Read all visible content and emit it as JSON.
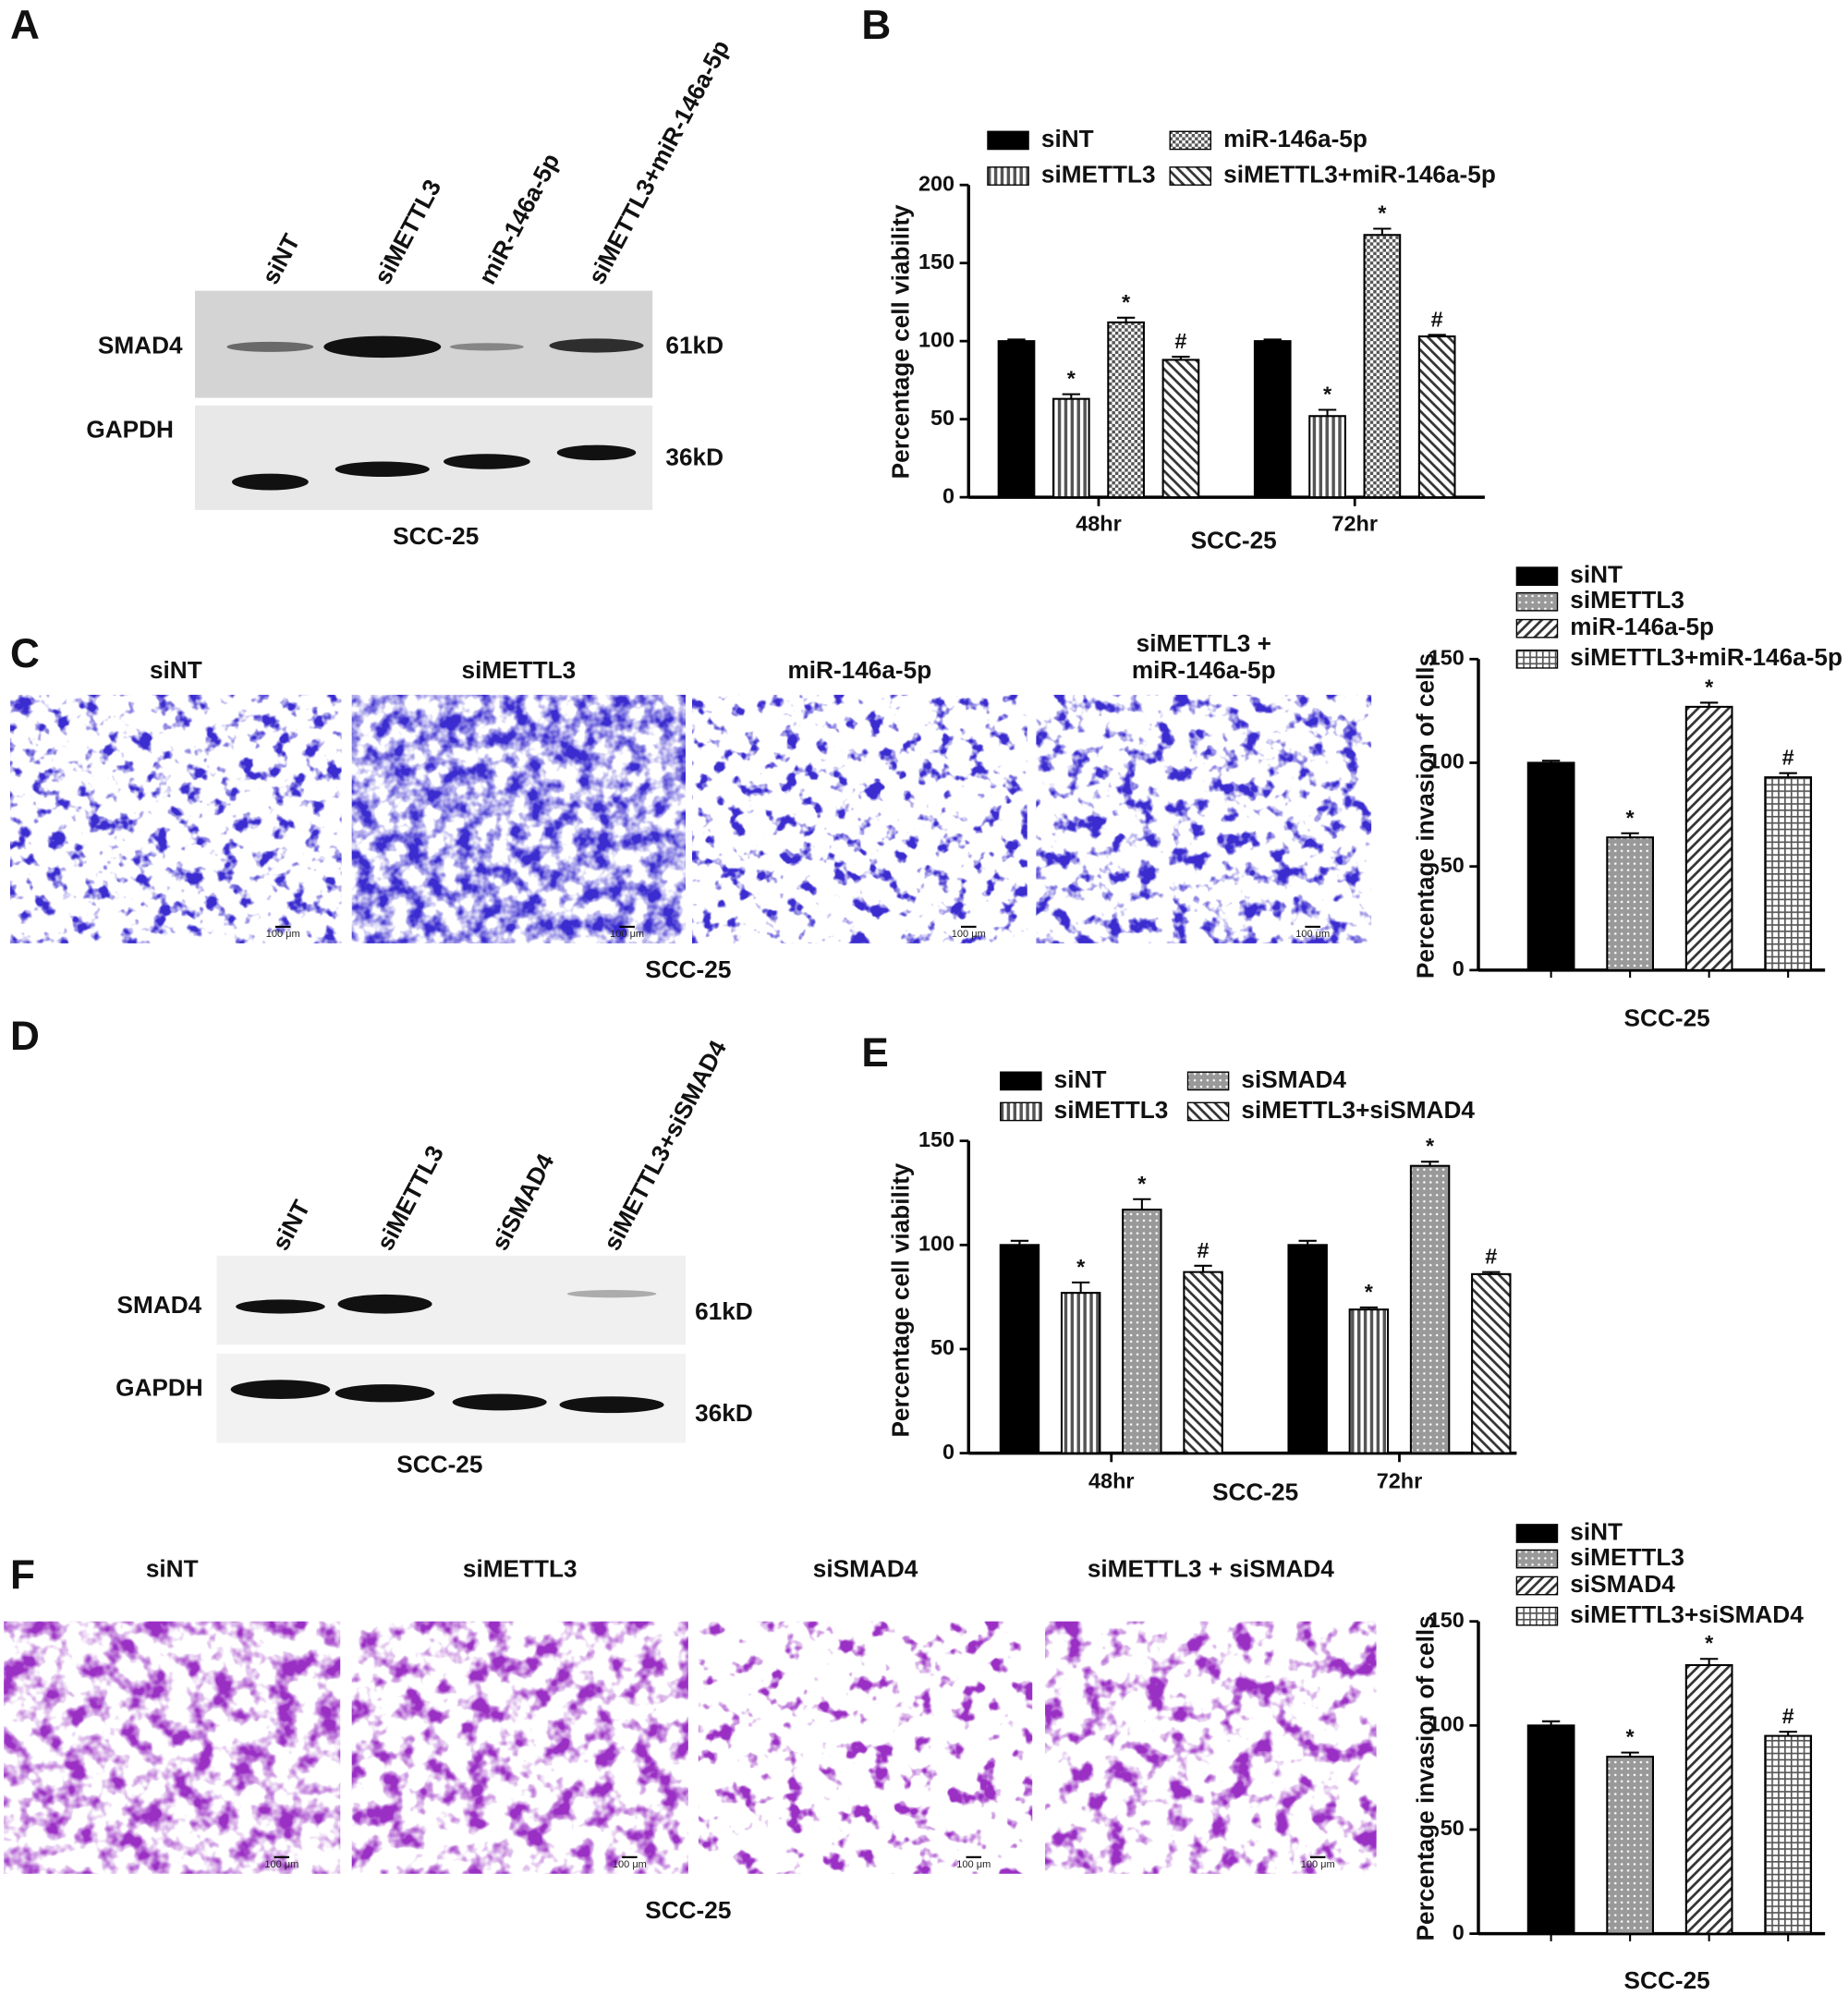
{
  "panel_labels": [
    "A",
    "B",
    "C",
    "D",
    "E",
    "F"
  ],
  "blot_a": {
    "lanes": [
      "siNT",
      "siMETTL3",
      "miR-146a-5p",
      "siMETTL3+miR-146a-5p"
    ],
    "rows": [
      {
        "label": "SMAD4",
        "size": "61kD"
      },
      {
        "label": "GAPDH",
        "size": "36kD"
      }
    ],
    "cell_line": "SCC-25"
  },
  "micrograph_c": {
    "labels": [
      [
        "siNT"
      ],
      [
        "siMETTL3"
      ],
      [
        "miR-146a-5p"
      ],
      [
        "siMETTL3 +",
        "miR-146a-5p"
      ]
    ],
    "scale_bar": "100 μm",
    "cell_line": "SCC-25"
  },
  "blot_d": {
    "lanes": [
      "siNT",
      "siMETTL3",
      "siSMAD4",
      "siMETTL3+siSMAD4"
    ],
    "rows": [
      {
        "label": "SMAD4",
        "size": "61kD"
      },
      {
        "label": "GAPDH",
        "size": "36kD"
      }
    ],
    "cell_line": "SCC-25"
  },
  "micrograph_f": {
    "labels": [
      [
        "siNT"
      ],
      [
        "siMETTL3"
      ],
      [
        "siSMAD4"
      ],
      [
        "siMETTL3 + siSMAD4"
      ]
    ],
    "scale_bar": "100 μm",
    "cell_line": "SCC-25"
  },
  "chart_data": [
    {
      "type": "bar",
      "ylabel": "Percentage cell viability",
      "xlabel": "SCC-25",
      "categories": [
        "48hr",
        "72hr"
      ],
      "ylim": [
        0,
        200
      ],
      "yticks": [
        0,
        50,
        100,
        150,
        200
      ],
      "series": [
        {
          "name": "siNT",
          "color": "#000000",
          "pattern": "solid",
          "values": [
            100,
            100
          ],
          "errors": [
            1,
            1
          ],
          "marks": [
            null,
            null
          ]
        },
        {
          "name": "siMETTL3",
          "color": "#555555",
          "pattern": "vertical",
          "values": [
            63,
            52
          ],
          "errors": [
            3,
            4
          ],
          "marks": [
            "*",
            "*"
          ]
        },
        {
          "name": "miR-146a-5p",
          "color": "#555555",
          "pattern": "checker",
          "values": [
            112,
            168
          ],
          "errors": [
            3,
            4
          ],
          "marks": [
            "*",
            "*"
          ]
        },
        {
          "name": "siMETTL3+miR-146a-5p",
          "color": "#333333",
          "pattern": "backdiag",
          "values": [
            88,
            103
          ],
          "errors": [
            2,
            1
          ],
          "marks": [
            "#",
            "#"
          ]
        }
      ]
    },
    {
      "type": "bar",
      "ylabel": "Percentage invasion of cells",
      "xlabel": "SCC-25",
      "categories": [
        null
      ],
      "ylim": [
        0,
        150
      ],
      "yticks": [
        0,
        50,
        100,
        150
      ],
      "series": [
        {
          "name": "siNT",
          "color": "#000000",
          "pattern": "solid",
          "values": [
            100
          ],
          "errors": [
            1
          ],
          "marks": [
            null
          ]
        },
        {
          "name": "siMETTL3",
          "color": "#999999",
          "pattern": "dots",
          "values": [
            64
          ],
          "errors": [
            2
          ],
          "marks": [
            "*"
          ]
        },
        {
          "name": "miR-146a-5p",
          "color": "#333333",
          "pattern": "diagonal",
          "values": [
            127
          ],
          "errors": [
            2
          ],
          "marks": [
            "*"
          ]
        },
        {
          "name": "siMETTL3+miR-146a-5p",
          "color": "#555555",
          "pattern": "grid",
          "values": [
            93
          ],
          "errors": [
            2
          ],
          "marks": [
            "#"
          ]
        }
      ]
    },
    {
      "type": "bar",
      "ylabel": "Percentage cell viability",
      "xlabel": "SCC-25",
      "categories": [
        "48hr",
        "72hr"
      ],
      "ylim": [
        0,
        150
      ],
      "yticks": [
        0,
        50,
        100,
        150
      ],
      "series": [
        {
          "name": "siNT",
          "color": "#000000",
          "pattern": "solid",
          "values": [
            100,
            100
          ],
          "errors": [
            2,
            2
          ],
          "marks": [
            null,
            null
          ]
        },
        {
          "name": "siMETTL3",
          "color": "#555555",
          "pattern": "vertical",
          "values": [
            77,
            69
          ],
          "errors": [
            5,
            1
          ],
          "marks": [
            "*",
            "*"
          ]
        },
        {
          "name": "siSMAD4",
          "color": "#999999",
          "pattern": "dots",
          "values": [
            117,
            138
          ],
          "errors": [
            5,
            2
          ],
          "marks": [
            "*",
            "*"
          ]
        },
        {
          "name": "siMETTL3+siSMAD4",
          "color": "#333333",
          "pattern": "backdiag",
          "values": [
            87,
            86
          ],
          "errors": [
            3,
            1
          ],
          "marks": [
            "#",
            "#"
          ]
        }
      ]
    },
    {
      "type": "bar",
      "ylabel": "Percentage invasion of cells",
      "xlabel": "SCC-25",
      "categories": [
        null
      ],
      "ylim": [
        0,
        150
      ],
      "yticks": [
        0,
        50,
        100,
        150
      ],
      "series": [
        {
          "name": "siNT",
          "color": "#000000",
          "pattern": "solid",
          "values": [
            100
          ],
          "errors": [
            2
          ],
          "marks": [
            null
          ]
        },
        {
          "name": "siMETTL3",
          "color": "#999999",
          "pattern": "dots",
          "values": [
            85
          ],
          "errors": [
            2
          ],
          "marks": [
            "*"
          ]
        },
        {
          "name": "siSMAD4",
          "color": "#333333",
          "pattern": "diagonal",
          "values": [
            129
          ],
          "errors": [
            3
          ],
          "marks": [
            "*"
          ]
        },
        {
          "name": "siMETTL3+siSMAD4",
          "color": "#555555",
          "pattern": "grid",
          "values": [
            95
          ],
          "errors": [
            2
          ],
          "marks": [
            "#"
          ]
        }
      ]
    }
  ]
}
